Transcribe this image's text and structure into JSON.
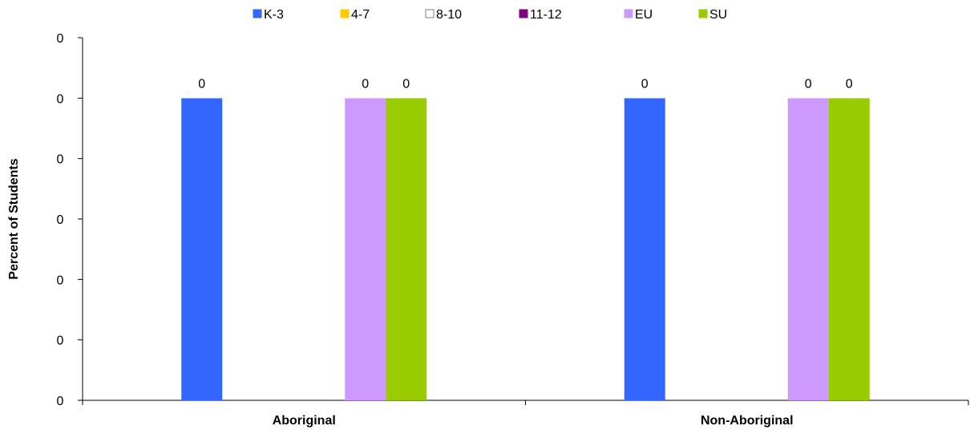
{
  "chart_data": {
    "type": "bar",
    "categories": [
      "Aboriginal",
      "Non-Aboriginal"
    ],
    "series": [
      {
        "name": "K-3",
        "color": "#3366FF",
        "values": [
          0,
          0
        ]
      },
      {
        "name": "4-7",
        "color": "#FFCC00",
        "values": [
          null,
          null
        ]
      },
      {
        "name": "8-10",
        "color": "#FFFFFF",
        "values": [
          null,
          null
        ]
      },
      {
        "name": "11-12",
        "color": "#800080",
        "values": [
          null,
          null
        ]
      },
      {
        "name": "EU",
        "color": "#CC99FF",
        "values": [
          0,
          0
        ]
      },
      {
        "name": "SU",
        "color": "#99CC00",
        "values": [
          0,
          0
        ]
      }
    ],
    "bar_level": 0.833,
    "data_labels": [
      "0",
      "0"
    ],
    "ylabel": "Percent of Students",
    "xlabel": "",
    "yticks": [
      "0",
      "0",
      "0",
      "0",
      "0",
      "0",
      "0"
    ],
    "grid": false,
    "legend_position": "top"
  }
}
